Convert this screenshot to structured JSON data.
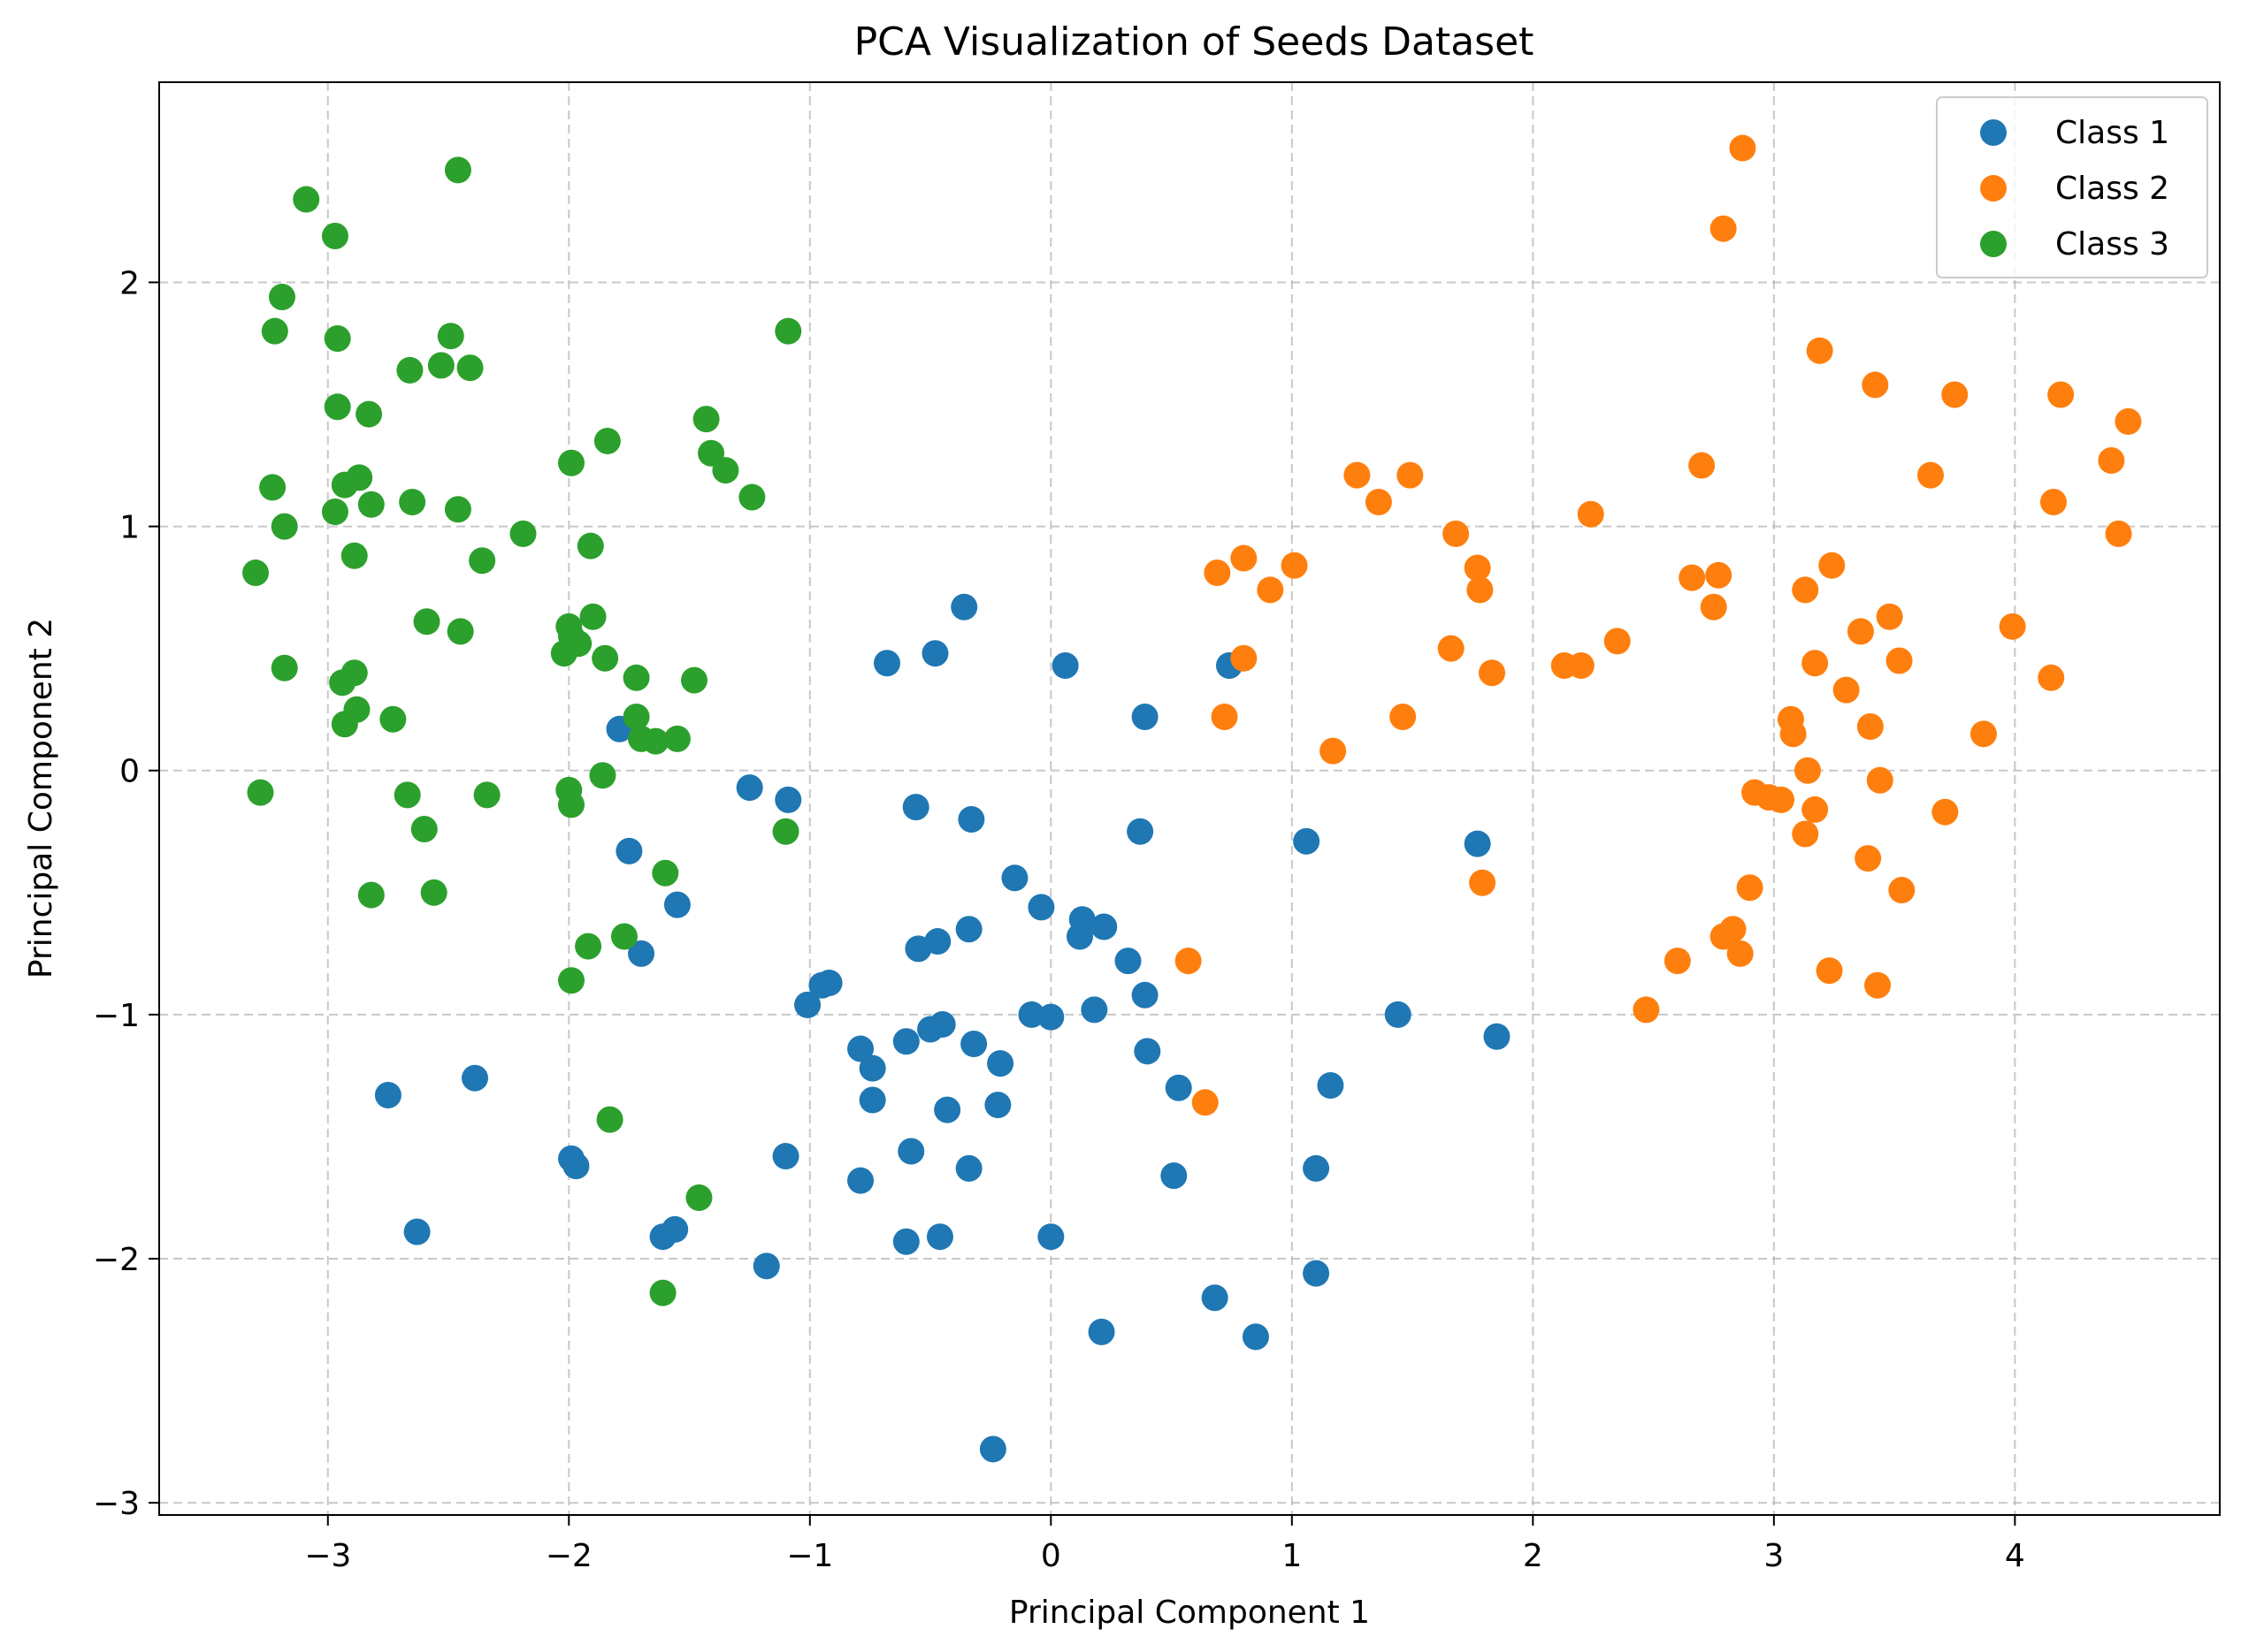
{
  "chart_data": {
    "type": "scatter",
    "title": "PCA Visualization of Seeds Dataset",
    "xlabel": "Principal Component 1",
    "ylabel": "Principal Component 2",
    "xlim": [
      -3.7,
      4.85
    ],
    "ylim": [
      -3.05,
      2.82
    ],
    "xticks": [
      -3,
      -2,
      -1,
      0,
      1,
      2,
      3,
      4
    ],
    "yticks": [
      -3,
      -2,
      -1,
      0,
      1,
      2
    ],
    "xtick_labels": [
      "−3",
      "−2",
      "−1",
      "0",
      "1",
      "2",
      "3",
      "4"
    ],
    "ytick_labels": [
      "−3",
      "−2",
      "−1",
      "0",
      "1",
      "2"
    ],
    "grid": true,
    "legend_position": "upper right",
    "series": [
      {
        "name": "Class 1",
        "color": "#1f77b4",
        "points": [
          [
            0.74,
            0.43
          ],
          [
            -0.36,
            0.67
          ],
          [
            -0.48,
            0.48
          ],
          [
            -0.68,
            0.44
          ],
          [
            0.06,
            0.43
          ],
          [
            0.39,
            0.22
          ],
          [
            -1.79,
            0.17
          ],
          [
            -1.25,
            -0.07
          ],
          [
            -1.09,
            -0.12
          ],
          [
            -0.56,
            -0.15
          ],
          [
            -0.33,
            -0.2
          ],
          [
            0.37,
            -0.25
          ],
          [
            1.06,
            -0.29
          ],
          [
            1.77,
            -0.3
          ],
          [
            -1.75,
            -0.33
          ],
          [
            -0.15,
            -0.44
          ],
          [
            -1.55,
            -0.55
          ],
          [
            -0.04,
            -0.56
          ],
          [
            0.13,
            -0.61
          ],
          [
            0.22,
            -0.64
          ],
          [
            -0.34,
            -0.65
          ],
          [
            0.12,
            -0.68
          ],
          [
            -0.47,
            -0.7
          ],
          [
            -0.55,
            -0.73
          ],
          [
            -1.7,
            -0.75
          ],
          [
            0.32,
            -0.78
          ],
          [
            -0.92,
            -0.87
          ],
          [
            -0.95,
            -0.88
          ],
          [
            0.39,
            -0.92
          ],
          [
            -1.01,
            -0.96
          ],
          [
            0.18,
            -0.98
          ],
          [
            -0.08,
            -1.0
          ],
          [
            0.0,
            -1.01
          ],
          [
            1.44,
            -1.0
          ],
          [
            -0.45,
            -1.04
          ],
          [
            -0.5,
            -1.06
          ],
          [
            -0.6,
            -1.11
          ],
          [
            -0.32,
            -1.12
          ],
          [
            1.85,
            -1.09
          ],
          [
            -0.79,
            -1.14
          ],
          [
            0.4,
            -1.15
          ],
          [
            -0.21,
            -1.2
          ],
          [
            -0.74,
            -1.22
          ],
          [
            1.16,
            -1.29
          ],
          [
            0.53,
            -1.3
          ],
          [
            -2.75,
            -1.33
          ],
          [
            -2.39,
            -1.26
          ],
          [
            -0.74,
            -1.35
          ],
          [
            -0.22,
            -1.37
          ],
          [
            -0.43,
            -1.39
          ],
          [
            -1.1,
            -1.58
          ],
          [
            -1.99,
            -1.59
          ],
          [
            -1.97,
            -1.62
          ],
          [
            -0.58,
            -1.56
          ],
          [
            1.1,
            -1.63
          ],
          [
            -0.34,
            -1.63
          ],
          [
            0.51,
            -1.66
          ],
          [
            -0.79,
            -1.68
          ],
          [
            -2.63,
            -1.89
          ],
          [
            -1.61,
            -1.91
          ],
          [
            -1.56,
            -1.88
          ],
          [
            -0.6,
            -1.93
          ],
          [
            -0.46,
            -1.91
          ],
          [
            0.0,
            -1.91
          ],
          [
            -1.18,
            -2.03
          ],
          [
            1.1,
            -2.06
          ],
          [
            0.68,
            -2.16
          ],
          [
            0.21,
            -2.3
          ],
          [
            0.85,
            -2.32
          ],
          [
            -0.24,
            -2.78
          ]
        ]
      },
      {
        "name": "Class 2",
        "color": "#ff7f0e",
        "points": [
          [
            2.87,
            2.55
          ],
          [
            2.79,
            2.22
          ],
          [
            3.19,
            1.72
          ],
          [
            3.42,
            1.58
          ],
          [
            3.75,
            1.54
          ],
          [
            4.19,
            1.54
          ],
          [
            4.47,
            1.43
          ],
          [
            4.4,
            1.27
          ],
          [
            2.7,
            1.25
          ],
          [
            1.27,
            1.21
          ],
          [
            1.49,
            1.21
          ],
          [
            3.65,
            1.21
          ],
          [
            1.36,
            1.1
          ],
          [
            4.16,
            1.1
          ],
          [
            2.24,
            1.05
          ],
          [
            1.68,
            0.97
          ],
          [
            4.43,
            0.97
          ],
          [
            0.8,
            0.87
          ],
          [
            1.77,
            0.83
          ],
          [
            0.69,
            0.81
          ],
          [
            1.01,
            0.84
          ],
          [
            3.24,
            0.84
          ],
          [
            2.66,
            0.79
          ],
          [
            2.77,
            0.8
          ],
          [
            0.91,
            0.74
          ],
          [
            1.78,
            0.74
          ],
          [
            3.13,
            0.74
          ],
          [
            2.75,
            0.67
          ],
          [
            3.48,
            0.63
          ],
          [
            3.99,
            0.59
          ],
          [
            3.36,
            0.57
          ],
          [
            2.35,
            0.53
          ],
          [
            1.66,
            0.5
          ],
          [
            0.8,
            0.46
          ],
          [
            3.17,
            0.44
          ],
          [
            3.52,
            0.45
          ],
          [
            2.13,
            0.43
          ],
          [
            2.2,
            0.43
          ],
          [
            1.83,
            0.4
          ],
          [
            4.15,
            0.38
          ],
          [
            3.3,
            0.33
          ],
          [
            0.72,
            0.22
          ],
          [
            1.46,
            0.22
          ],
          [
            3.07,
            0.21
          ],
          [
            3.08,
            0.15
          ],
          [
            3.4,
            0.18
          ],
          [
            3.87,
            0.15
          ],
          [
            1.17,
            0.08
          ],
          [
            3.14,
            0.0
          ],
          [
            3.44,
            -0.04
          ],
          [
            2.92,
            -0.09
          ],
          [
            2.98,
            -0.11
          ],
          [
            3.03,
            -0.12
          ],
          [
            3.17,
            -0.16
          ],
          [
            3.71,
            -0.17
          ],
          [
            3.13,
            -0.26
          ],
          [
            3.39,
            -0.36
          ],
          [
            1.79,
            -0.46
          ],
          [
            2.9,
            -0.48
          ],
          [
            3.53,
            -0.49
          ],
          [
            2.83,
            -0.65
          ],
          [
            2.79,
            -0.68
          ],
          [
            2.86,
            -0.75
          ],
          [
            2.6,
            -0.78
          ],
          [
            0.57,
            -0.78
          ],
          [
            3.23,
            -0.82
          ],
          [
            3.43,
            -0.88
          ],
          [
            2.47,
            -0.98
          ],
          [
            0.64,
            -1.36
          ]
        ]
      },
      {
        "name": "Class 3",
        "color": "#2ca02c",
        "points": [
          [
            -2.46,
            2.46
          ],
          [
            -3.09,
            2.34
          ],
          [
            -2.97,
            2.19
          ],
          [
            -3.19,
            1.94
          ],
          [
            -3.22,
            1.8
          ],
          [
            -1.09,
            1.8
          ],
          [
            -2.96,
            1.77
          ],
          [
            -2.49,
            1.78
          ],
          [
            -2.53,
            1.66
          ],
          [
            -2.41,
            1.65
          ],
          [
            -2.66,
            1.64
          ],
          [
            -2.96,
            1.49
          ],
          [
            -2.83,
            1.46
          ],
          [
            -1.43,
            1.44
          ],
          [
            -1.84,
            1.35
          ],
          [
            -1.41,
            1.3
          ],
          [
            -1.99,
            1.26
          ],
          [
            -1.35,
            1.23
          ],
          [
            -2.87,
            1.2
          ],
          [
            -2.93,
            1.17
          ],
          [
            -3.23,
            1.16
          ],
          [
            -1.24,
            1.12
          ],
          [
            -2.65,
            1.1
          ],
          [
            -2.82,
            1.09
          ],
          [
            -2.97,
            1.06
          ],
          [
            -2.46,
            1.07
          ],
          [
            -3.18,
            1.0
          ],
          [
            -2.19,
            0.97
          ],
          [
            -1.91,
            0.92
          ],
          [
            -2.89,
            0.88
          ],
          [
            -2.36,
            0.86
          ],
          [
            -3.3,
            0.81
          ],
          [
            -1.9,
            0.63
          ],
          [
            -2.59,
            0.61
          ],
          [
            -2.45,
            0.57
          ],
          [
            -2.0,
            0.59
          ],
          [
            -1.99,
            0.55
          ],
          [
            -1.96,
            0.52
          ],
          [
            -2.02,
            0.48
          ],
          [
            -1.85,
            0.46
          ],
          [
            -3.18,
            0.42
          ],
          [
            -2.89,
            0.4
          ],
          [
            -1.72,
            0.38
          ],
          [
            -1.48,
            0.37
          ],
          [
            -2.94,
            0.36
          ],
          [
            -2.88,
            0.25
          ],
          [
            -2.93,
            0.19
          ],
          [
            -2.73,
            0.21
          ],
          [
            -1.72,
            0.22
          ],
          [
            -1.7,
            0.13
          ],
          [
            -1.64,
            0.12
          ],
          [
            -1.55,
            0.13
          ],
          [
            -1.86,
            -0.02
          ],
          [
            -3.28,
            -0.09
          ],
          [
            -2.67,
            -0.1
          ],
          [
            -2.34,
            -0.1
          ],
          [
            -2.0,
            -0.08
          ],
          [
            -1.99,
            -0.14
          ],
          [
            -2.6,
            -0.24
          ],
          [
            -1.1,
            -0.25
          ],
          [
            -1.6,
            -0.42
          ],
          [
            -2.82,
            -0.51
          ],
          [
            -2.56,
            -0.5
          ],
          [
            -1.77,
            -0.68
          ],
          [
            -1.92,
            -0.72
          ],
          [
            -1.99,
            -0.86
          ],
          [
            -1.83,
            -1.43
          ],
          [
            -1.46,
            -1.75
          ],
          [
            -1.61,
            -2.14
          ]
        ]
      }
    ]
  }
}
